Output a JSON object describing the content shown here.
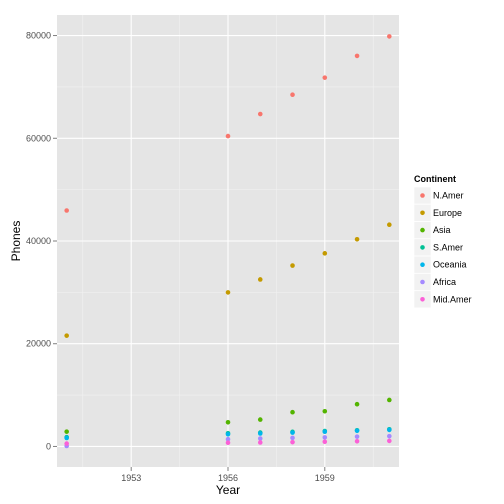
{
  "chart_data": {
    "type": "scatter",
    "xlabel": "Year",
    "ylabel": "Phones",
    "xlim": [
      1950.7,
      1961.3
    ],
    "ylim": [
      -4000,
      84000
    ],
    "x_ticks": [
      1953,
      1956,
      1959
    ],
    "x_minor_ticks": [
      1951.5,
      1954.5,
      1957.5,
      1960.5
    ],
    "y_ticks": [
      0,
      20000,
      40000,
      60000,
      80000
    ],
    "y_minor_ticks": [
      10000,
      30000,
      50000,
      70000
    ],
    "grid": true,
    "legend": {
      "title": "Continent",
      "position": "right"
    },
    "x": [
      1951,
      1956,
      1957,
      1958,
      1959,
      1960,
      1961
    ],
    "series": [
      {
        "name": "N.Amer",
        "color": "#F8766D",
        "values": [
          45939,
          60423,
          64721,
          68484,
          71799,
          76036,
          79831
        ]
      },
      {
        "name": "Europe",
        "color": "#C49A00",
        "values": [
          21574,
          29990,
          32510,
          35218,
          37598,
          40341,
          43173
        ]
      },
      {
        "name": "Asia",
        "color": "#53B400",
        "values": [
          2876,
          4708,
          5230,
          6662,
          6856,
          8220,
          9053
        ]
      },
      {
        "name": "S.Amer",
        "color": "#00C094",
        "values": [
          1815,
          2568,
          2695,
          2845,
          3000,
          3145,
          3338
        ]
      },
      {
        "name": "Oceania",
        "color": "#00B6EB",
        "values": [
          1646,
          2366,
          2526,
          2691,
          2868,
          3054,
          3224
        ]
      },
      {
        "name": "Africa",
        "color": "#A58AFF",
        "values": [
          89,
          1411,
          1546,
          1663,
          1769,
          1905,
          2005
        ]
      },
      {
        "name": "Mid.Amer",
        "color": "#FB61D7",
        "values": [
          555,
          733,
          773,
          836,
          911,
          1008,
          1076
        ]
      }
    ]
  }
}
